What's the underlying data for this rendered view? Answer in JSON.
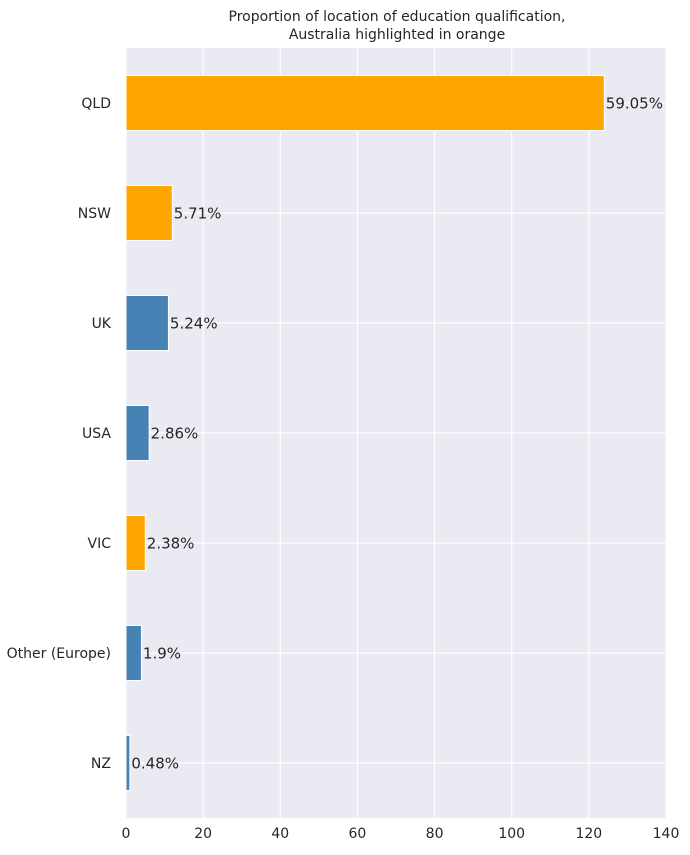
{
  "chart_data": {
    "type": "bar",
    "orientation": "horizontal",
    "title_lines": [
      "Proportion of location of education qualification,",
      "Australia highlighted in orange"
    ],
    "categories": [
      "QLD",
      "NSW",
      "UK",
      "USA",
      "VIC",
      "Other (Europe)",
      "NZ"
    ],
    "values": [
      124,
      12,
      11,
      6,
      5,
      4,
      1
    ],
    "data_labels": [
      "59.05%",
      "5.71%",
      "5.24%",
      "2.86%",
      "2.38%",
      "1.9%",
      "0.48%"
    ],
    "highlight": [
      true,
      true,
      false,
      false,
      true,
      false,
      false
    ],
    "colors": {
      "highlight": "#FFA500",
      "normal": "#4682B4",
      "background": "#EAEAF2",
      "grid": "#FFFFFF"
    },
    "xlim": [
      0,
      140
    ],
    "xticks": [
      "0",
      "20",
      "40",
      "60",
      "80",
      "100",
      "120",
      "140"
    ],
    "grid": true,
    "xlabel": "",
    "ylabel": ""
  }
}
